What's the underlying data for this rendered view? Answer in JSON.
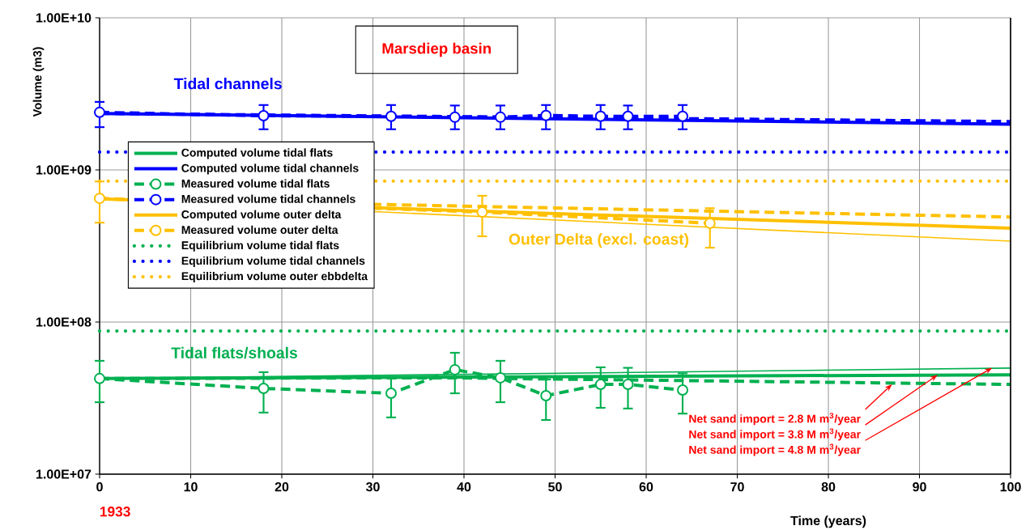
{
  "chart_data": {
    "type": "line",
    "xlabel": "Time (years)",
    "ylabel": "Volume (m3)",
    "log": "y",
    "grid": true,
    "legend": "left",
    "xlim": [
      0,
      100
    ],
    "xticks": [
      0,
      10,
      20,
      30,
      40,
      50,
      60,
      70,
      80,
      90,
      100
    ],
    "ylim": [
      10000000,
      10000000000
    ],
    "yticks": [
      {
        "value": 10000000,
        "label": "1.00E+07"
      },
      {
        "value": 100000000,
        "label": "1.00E+08"
      },
      {
        "value": 1000000000,
        "label": "1.00E+09"
      },
      {
        "value": 10000000000,
        "label": "1.00E+10"
      }
    ],
    "series": [
      {
        "name": "Computed volume tidal flats",
        "color": "#00b050",
        "line_style": "solid",
        "x": [
          0,
          100
        ],
        "values": [
          42500000,
          45000000
        ]
      },
      {
        "name": "Computed volume tidal channels",
        "color": "#0000ff",
        "line_style": "solid",
        "x": [
          0,
          100
        ],
        "values": [
          2350000000,
          2000000000
        ]
      },
      {
        "name": "Measured volume tidal flats",
        "color": "#00b050",
        "line_style": "dashed",
        "marker": "circle",
        "x": [
          0,
          18,
          32,
          39,
          44,
          49,
          55,
          58,
          64
        ],
        "values": [
          42500000,
          36600000,
          34000000,
          48600000,
          43000000,
          32800000,
          38900000,
          38900000,
          35700000
        ],
        "errors": [
          [
            29700000,
            55600000
          ],
          [
            25400000,
            46800000
          ],
          [
            23600000,
            43500000
          ],
          [
            34000000,
            62800000
          ],
          [
            29700000,
            55600000
          ],
          [
            22700000,
            41900000
          ],
          [
            27300000,
            50400000
          ],
          [
            27000000,
            50000000
          ],
          [
            25000000,
            46000000
          ]
        ]
      },
      {
        "name": "Measured volume tidal channels",
        "color": "#0000ff",
        "line_style": "dashed",
        "marker": "circle",
        "x": [
          0,
          18,
          32,
          39,
          44,
          49,
          55,
          58,
          64
        ],
        "values": [
          2390000000,
          2270000000,
          2250000000,
          2220000000,
          2220000000,
          2280000000,
          2250000000,
          2250000000,
          2250000000
        ],
        "errors": [
          [
            1910000000,
            2800000000
          ],
          [
            1850000000,
            2670000000
          ],
          [
            1850000000,
            2670000000
          ],
          [
            1850000000,
            2650000000
          ],
          [
            1850000000,
            2650000000
          ],
          [
            1850000000,
            2670000000
          ],
          [
            1850000000,
            2670000000
          ],
          [
            1850000000,
            2650000000
          ],
          [
            1850000000,
            2670000000
          ]
        ]
      },
      {
        "name": "Computed volume outer delta",
        "color": "#ffc000",
        "line_style": "solid",
        "x": [
          0,
          100
        ],
        "values": [
          645000000,
          414000000
        ]
      },
      {
        "name": "Measured volume outer delta",
        "color": "#ffc000",
        "line_style": "dashed",
        "marker": "circle",
        "x": [
          0,
          42,
          67
        ],
        "values": [
          650000000,
          528000000,
          446000000
        ],
        "errors": [
          [
            450000000,
            840000000
          ],
          [
            366000000,
            676000000
          ],
          [
            308000000,
            560000000
          ]
        ]
      },
      {
        "name": "Equilibrium volume tidal flats",
        "color": "#00b050",
        "line_style": "dotted",
        "x": [
          0,
          100
        ],
        "values": [
          87300000,
          87300000
        ]
      },
      {
        "name": "Equilibrium volume tidal channels",
        "color": "#0000ff",
        "line_style": "dotted",
        "x": [
          0,
          100
        ],
        "values": [
          1310000000,
          1310000000
        ]
      },
      {
        "name": "Equilibrium volume outer ebbdelta",
        "color": "#ffc000",
        "line_style": "dotted",
        "x": [
          0,
          100
        ],
        "values": [
          844000000,
          844000000
        ]
      },
      {
        "color": "#00b050",
        "line_style": "solid",
        "x": [
          0,
          100
        ],
        "values": [
          42500000,
          49800000
        ]
      },
      {
        "color": "#00b050",
        "line_style": "dashed",
        "x": [
          0,
          38,
          100
        ],
        "values": [
          42500000,
          43000000,
          38900000
        ]
      },
      {
        "color": "#0000ff",
        "line_style": "dashed",
        "x": [
          0,
          100
        ],
        "values": [
          2350000000,
          2080000000
        ]
      },
      {
        "color": "#ffc000",
        "line_style": "solid",
        "x": [
          0,
          100
        ],
        "values": [
          645000000,
          340000000
        ]
      },
      {
        "color": "#ffc000",
        "line_style": "dashed",
        "x": [
          0,
          100
        ],
        "values": [
          645000000,
          490000000
        ]
      }
    ],
    "annotations": [
      "Marsdiep basin",
      "Tidal channels",
      "Outer Delta (excl. coast)",
      "Tidal flats/shoals",
      "1933",
      {
        "text": "Net sand import = 2.8 M m$^{3}$/year",
        "x": 87,
        "y": 39000000
      },
      {
        "text": "Net sand import = 3.8 M m$^{3}$/year",
        "x": 92,
        "y": 45000000
      },
      {
        "text": "Net sand import = 4.8 M m$^{3}$/year",
        "x": 98,
        "y": 50000000
      }
    ]
  }
}
